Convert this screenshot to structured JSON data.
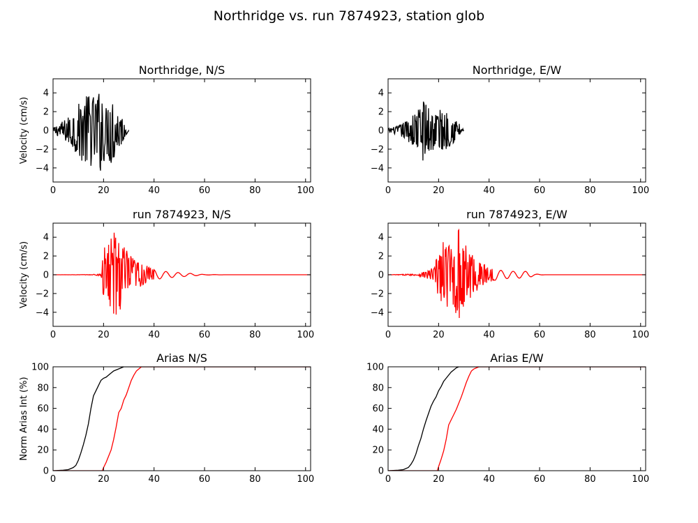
{
  "figure": {
    "suptitle": "Northridge vs. run 7874923, station glob"
  },
  "chart_data": [
    {
      "type": "line",
      "title": "Northridge, N/S",
      "xlabel": "",
      "ylabel": "Velocity (cm/s)",
      "xlim": [
        0,
        102
      ],
      "ylim": [
        -5.5,
        5.5
      ],
      "xticks": [
        "0",
        "20",
        "40",
        "60",
        "80",
        "100"
      ],
      "yticks": [
        "−4",
        "−2",
        "0",
        "2",
        "4"
      ],
      "grid": false,
      "series": [
        {
          "color": "#000000",
          "kind": "waveform",
          "start": 0,
          "end": 30,
          "envelope": [
            [
              0,
              0.3
            ],
            [
              5,
              1.2
            ],
            [
              8,
              2.0
            ],
            [
              11,
              3.2
            ],
            [
              14,
              3.9
            ],
            [
              17,
              3.6
            ],
            [
              19,
              4.6
            ],
            [
              21,
              2.5
            ],
            [
              23,
              3.9
            ],
            [
              25,
              2.6
            ],
            [
              27,
              1.7
            ],
            [
              29,
              0.5
            ],
            [
              30,
              0.05
            ]
          ]
        }
      ]
    },
    {
      "type": "line",
      "title": "Northridge, E/W",
      "xlabel": "",
      "ylabel": "",
      "xlim": [
        0,
        102
      ],
      "ylim": [
        -5.5,
        5.5
      ],
      "xticks": [
        "0",
        "20",
        "40",
        "60",
        "80",
        "100"
      ],
      "yticks": [
        "−4",
        "−2",
        "0",
        "2",
        "4"
      ],
      "grid": false,
      "series": [
        {
          "color": "#000000",
          "kind": "waveform",
          "start": 0,
          "end": 30,
          "envelope": [
            [
              0,
              0.2
            ],
            [
              4,
              0.5
            ],
            [
              8,
              1.2
            ],
            [
              11,
              2.0
            ],
            [
              14,
              3.3
            ],
            [
              17,
              2.5
            ],
            [
              19,
              2.2
            ],
            [
              22,
              2.3
            ],
            [
              25,
              1.5
            ],
            [
              28,
              1.0
            ],
            [
              30,
              0.05
            ]
          ]
        }
      ]
    },
    {
      "type": "line",
      "title": "run 7874923, N/S",
      "xlabel": "",
      "ylabel": "Velocity (cm/s)",
      "xlim": [
        0,
        102
      ],
      "ylim": [
        -5.5,
        5.5
      ],
      "xticks": [
        "0",
        "20",
        "40",
        "60",
        "80",
        "100"
      ],
      "yticks": [
        "−4",
        "−2",
        "0",
        "2",
        "4"
      ],
      "grid": false,
      "series": [
        {
          "color": "#ff0000",
          "kind": "waveform",
          "start": 0,
          "end": 102,
          "envelope": [
            [
              0,
              0
            ],
            [
              15,
              0.02
            ],
            [
              19,
              0.15
            ],
            [
              20,
              2.8
            ],
            [
              22,
              3.6
            ],
            [
              24,
              4.6
            ],
            [
              26,
              4.3
            ],
            [
              28,
              3.3
            ],
            [
              30,
              2.2
            ],
            [
              33,
              1.6
            ],
            [
              36,
              1.1
            ],
            [
              40,
              0.6
            ],
            [
              44,
              0.4
            ],
            [
              50,
              0.25
            ],
            [
              55,
              0.15
            ],
            [
              60,
              0.03
            ],
            [
              70,
              0
            ],
            [
              102,
              0
            ]
          ]
        }
      ]
    },
    {
      "type": "line",
      "title": "run 7874923, E/W",
      "xlabel": "",
      "ylabel": "",
      "xlim": [
        0,
        102
      ],
      "ylim": [
        -5.5,
        5.5
      ],
      "xticks": [
        "0",
        "20",
        "40",
        "60",
        "80",
        "100"
      ],
      "yticks": [
        "−4",
        "−2",
        "0",
        "2",
        "4"
      ],
      "grid": false,
      "series": [
        {
          "color": "#ff0000",
          "kind": "waveform",
          "start": 0,
          "end": 102,
          "envelope": [
            [
              0,
              0
            ],
            [
              12,
              0.1
            ],
            [
              15,
              0.4
            ],
            [
              18,
              0.8
            ],
            [
              20,
              2.5
            ],
            [
              22,
              3.6
            ],
            [
              25,
              3.2
            ],
            [
              28,
              5.0
            ],
            [
              30,
              3.4
            ],
            [
              33,
              2.5
            ],
            [
              36,
              1.5
            ],
            [
              40,
              0.8
            ],
            [
              45,
              0.5
            ],
            [
              50,
              0.4
            ],
            [
              55,
              0.4
            ],
            [
              58,
              0.1
            ],
            [
              62,
              0
            ],
            [
              102,
              0
            ]
          ]
        }
      ]
    },
    {
      "type": "line",
      "title": "Arias N/S",
      "xlabel": "",
      "ylabel": "Norm Arias Int (%)",
      "xlim": [
        0,
        102
      ],
      "ylim": [
        0,
        100
      ],
      "xticks": [
        "0",
        "20",
        "40",
        "60",
        "80",
        "100"
      ],
      "yticks": [
        "0",
        "20",
        "40",
        "60",
        "80",
        "100"
      ],
      "grid": false,
      "series": [
        {
          "color": "#000000",
          "kind": "cumulative",
          "x": [
            0,
            4,
            6,
            8,
            9,
            10,
            11,
            12,
            13,
            14,
            15,
            16,
            17,
            18,
            19,
            20,
            21,
            22,
            23,
            24,
            25,
            26,
            27,
            28,
            29,
            102
          ],
          "y": [
            0,
            0.5,
            1,
            3,
            5,
            10,
            17,
            25,
            34,
            45,
            60,
            72,
            77,
            82,
            87,
            89,
            90,
            92,
            94,
            96,
            97,
            98,
            99,
            100,
            100,
            100
          ]
        },
        {
          "color": "#ff0000",
          "kind": "cumulative",
          "x": [
            0,
            19.5,
            20,
            21,
            22,
            23,
            24,
            25,
            26,
            27,
            28,
            29,
            30,
            31,
            32,
            33,
            34,
            35,
            102
          ],
          "y": [
            0,
            0,
            3,
            8,
            14,
            20,
            30,
            42,
            56,
            60,
            68,
            73,
            80,
            87,
            92,
            96,
            98,
            100,
            100
          ]
        }
      ]
    },
    {
      "type": "line",
      "title": "Arias E/W",
      "xlabel": "",
      "ylabel": "",
      "xlim": [
        0,
        102
      ],
      "ylim": [
        0,
        100
      ],
      "xticks": [
        "0",
        "20",
        "40",
        "60",
        "80",
        "100"
      ],
      "yticks": [
        "0",
        "20",
        "40",
        "60",
        "80",
        "100"
      ],
      "grid": false,
      "series": [
        {
          "color": "#000000",
          "kind": "cumulative",
          "x": [
            0,
            4,
            6,
            8,
            9,
            10,
            11,
            12,
            13,
            14,
            15,
            16,
            17,
            18,
            19,
            20,
            21,
            22,
            23,
            24,
            25,
            26,
            27,
            28,
            29,
            102
          ],
          "y": [
            0,
            0.5,
            1,
            3,
            6,
            10,
            16,
            24,
            31,
            40,
            48,
            55,
            62,
            67,
            71,
            77,
            81,
            86,
            89,
            92,
            95,
            97,
            99,
            100,
            100,
            100
          ]
        },
        {
          "color": "#ff0000",
          "kind": "cumulative",
          "x": [
            0,
            19.5,
            20,
            21,
            22,
            23,
            24,
            25,
            26,
            27,
            28,
            29,
            30,
            31,
            32,
            33,
            34,
            35,
            36,
            102
          ],
          "y": [
            0,
            0,
            4,
            11,
            19,
            30,
            44,
            49,
            54,
            59,
            65,
            71,
            78,
            85,
            91,
            96,
            98,
            99,
            100,
            100
          ]
        }
      ]
    }
  ]
}
